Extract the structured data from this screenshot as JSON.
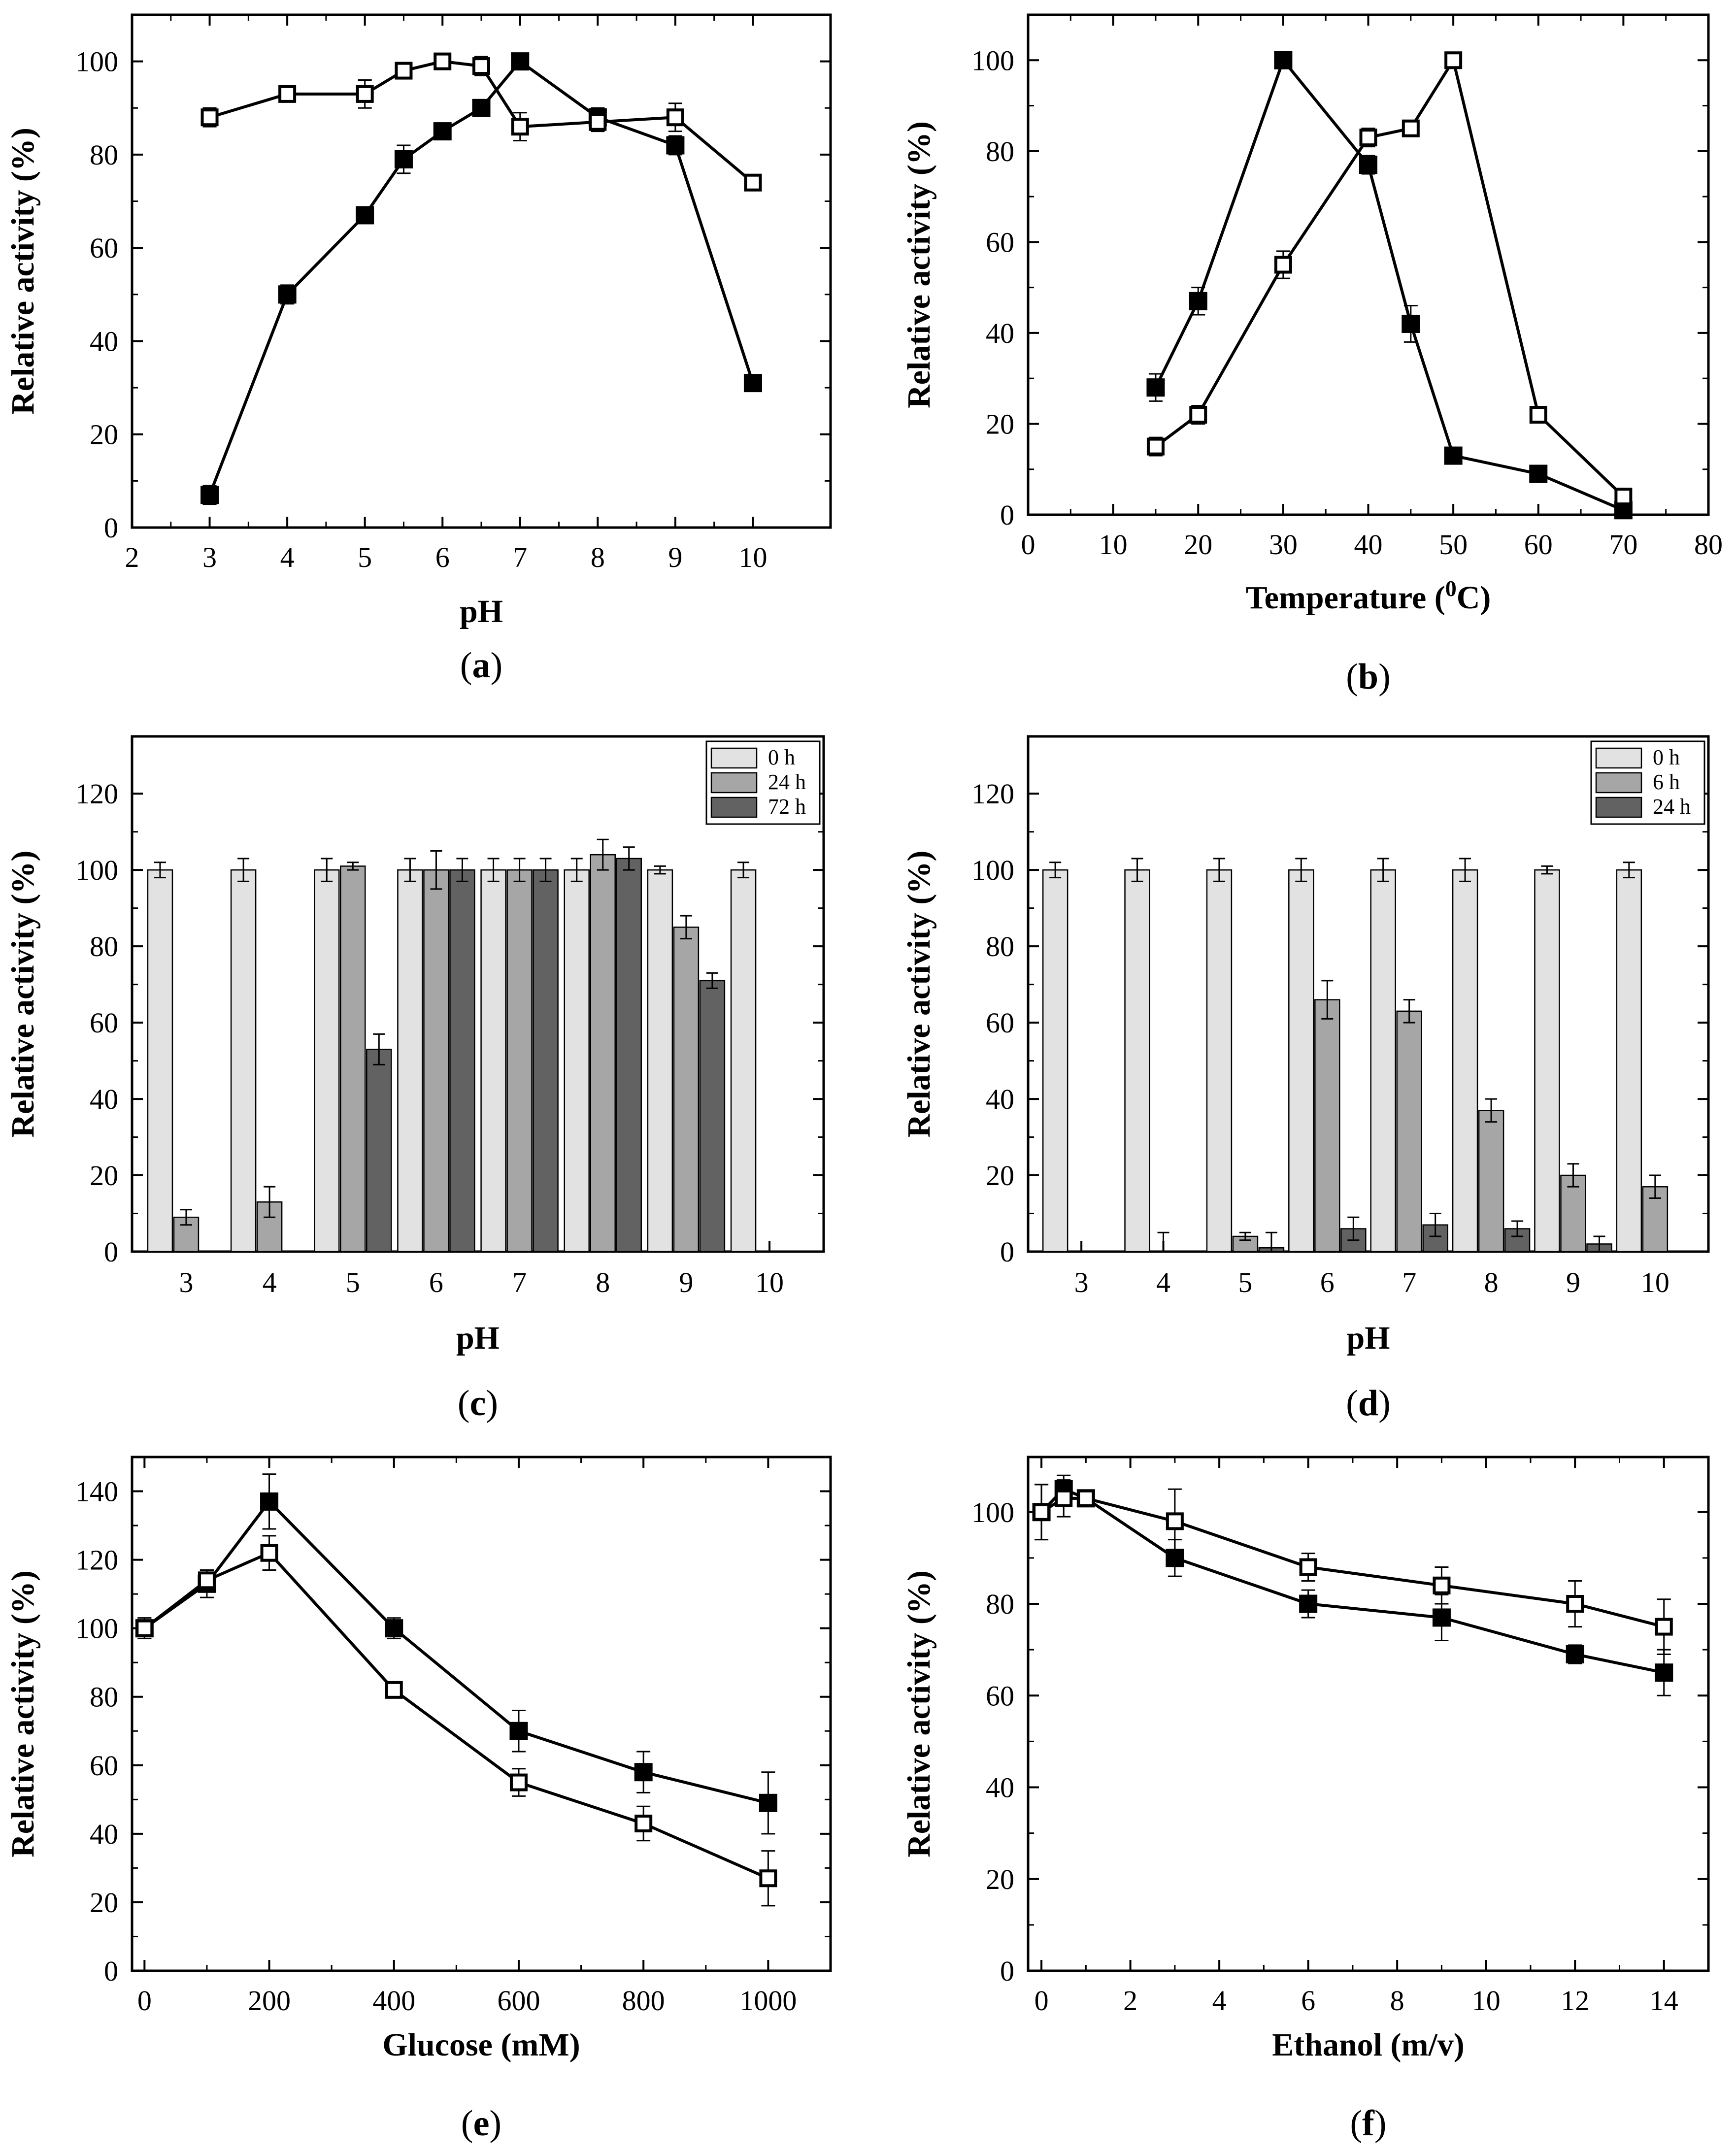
{
  "figure": {
    "panels": [
      "a",
      "b",
      "c",
      "d",
      "e",
      "f"
    ]
  },
  "chart_data": [
    {
      "id": "a",
      "type": "line",
      "caption_letter": "a",
      "xlabel": "pH",
      "ylabel": "Relative activity (%)",
      "xlim": [
        2,
        11
      ],
      "ylim": [
        0,
        110
      ],
      "xticks": [
        2,
        3,
        4,
        5,
        6,
        7,
        8,
        9,
        10
      ],
      "yticks": [
        0,
        20,
        40,
        60,
        80,
        100
      ],
      "series": [
        {
          "name": "filled squares",
          "marker": "filled",
          "x": [
            3,
            4,
            5,
            5.5,
            6,
            6.5,
            7,
            8,
            9,
            10
          ],
          "values": [
            7,
            50,
            67,
            79,
            85,
            90,
            100,
            88,
            82,
            31
          ],
          "errors": [
            2,
            2,
            1,
            3,
            1,
            1,
            1,
            2,
            2,
            1
          ]
        },
        {
          "name": "open squares",
          "marker": "open",
          "x": [
            3,
            4,
            5,
            5.5,
            6,
            6.5,
            7,
            8,
            9,
            10
          ],
          "values": [
            88,
            93,
            93,
            98,
            100,
            99,
            86,
            87,
            88,
            74
          ],
          "errors": [
            2,
            1,
            3,
            1,
            1,
            2,
            3,
            2,
            3,
            1
          ]
        }
      ]
    },
    {
      "id": "b",
      "type": "line",
      "caption_letter": "b",
      "xlabel": "Temperature (",
      "xlabel_sup": "0",
      "xlabel_tail": "C)",
      "ylabel": "Relative activity (%)",
      "xlim": [
        0,
        80
      ],
      "ylim": [
        0,
        110
      ],
      "xticks": [
        0,
        10,
        20,
        30,
        40,
        50,
        60,
        70,
        80
      ],
      "yticks": [
        0,
        20,
        40,
        60,
        80,
        100
      ],
      "series": [
        {
          "name": "filled squares",
          "marker": "filled",
          "x": [
            15,
            20,
            30,
            40,
            45,
            50,
            60,
            70
          ],
          "values": [
            28,
            47,
            100,
            77,
            42,
            13,
            9,
            1
          ],
          "errors": [
            3,
            3,
            1,
            2,
            4,
            1,
            1,
            1
          ]
        },
        {
          "name": "open squares",
          "marker": "open",
          "x": [
            15,
            20,
            30,
            40,
            45,
            50,
            60,
            70
          ],
          "values": [
            15,
            22,
            55,
            83,
            85,
            100,
            22,
            4
          ],
          "errors": [
            2,
            2,
            3,
            2,
            1,
            1,
            1,
            1
          ]
        }
      ]
    },
    {
      "id": "c",
      "type": "bar",
      "caption_letter": "c",
      "xlabel": "pH",
      "ylabel": "Relative activity (%)",
      "categories": [
        "3",
        "4",
        "5",
        "6",
        "7",
        "8",
        "9",
        "10"
      ],
      "ylim": [
        0,
        135
      ],
      "yticks": [
        0,
        20,
        40,
        60,
        80,
        100,
        120
      ],
      "legend_position": "top-right",
      "series": [
        {
          "name": "0 h",
          "color": "#e2e2e2",
          "values": [
            100,
            100,
            100,
            100,
            100,
            100,
            100,
            100
          ],
          "errors": [
            2,
            3,
            3,
            3,
            3,
            3,
            1,
            2
          ]
        },
        {
          "name": "24 h",
          "color": "#a6a6a6",
          "values": [
            9,
            13,
            101,
            100,
            100,
            104,
            85,
            0
          ],
          "errors": [
            2,
            4,
            1,
            5,
            3,
            4,
            3,
            0
          ]
        },
        {
          "name": "72 h",
          "color": "#626262",
          "values": [
            0,
            0,
            53,
            100,
            100,
            103,
            71,
            0
          ],
          "errors": [
            0,
            0,
            4,
            3,
            3,
            3,
            2,
            0
          ]
        }
      ]
    },
    {
      "id": "d",
      "type": "bar",
      "caption_letter": "d",
      "xlabel": "pH",
      "ylabel": "Relative activity (%)",
      "categories": [
        "3",
        "4",
        "5",
        "6",
        "7",
        "8",
        "9",
        "10"
      ],
      "ylim": [
        0,
        135
      ],
      "yticks": [
        0,
        20,
        40,
        60,
        80,
        100,
        120
      ],
      "legend_position": "top-right",
      "series": [
        {
          "name": "0 h",
          "color": "#e2e2e2",
          "values": [
            100,
            100,
            100,
            100,
            100,
            100,
            100,
            100
          ],
          "errors": [
            2,
            3,
            3,
            3,
            3,
            3,
            1,
            2
          ]
        },
        {
          "name": "6 h",
          "color": "#a6a6a6",
          "values": [
            0,
            0,
            4,
            66,
            63,
            37,
            20,
            17
          ],
          "errors": [
            0,
            5,
            1,
            5,
            3,
            3,
            3,
            3
          ]
        },
        {
          "name": "24 h",
          "color": "#626262",
          "values": [
            0,
            0,
            1,
            6,
            7,
            6,
            2,
            0
          ],
          "errors": [
            0,
            0,
            4,
            3,
            3,
            2,
            2,
            0
          ]
        }
      ]
    },
    {
      "id": "e",
      "type": "line",
      "caption_letter": "e",
      "xlabel": "Glucose (mM)",
      "ylabel": "Relative activity (%)",
      "xlim": [
        -20,
        1100
      ],
      "ylim": [
        0,
        150
      ],
      "xticks": [
        0,
        200,
        400,
        600,
        800,
        1000
      ],
      "yticks": [
        0,
        20,
        40,
        60,
        80,
        100,
        120,
        140
      ],
      "series": [
        {
          "name": "filled squares",
          "marker": "filled",
          "x": [
            0,
            100,
            200,
            400,
            600,
            800,
            1000
          ],
          "values": [
            100,
            113,
            137,
            100,
            70,
            58,
            49
          ],
          "errors": [
            3,
            4,
            8,
            3,
            6,
            6,
            9
          ]
        },
        {
          "name": "open squares",
          "marker": "open",
          "x": [
            0,
            100,
            200,
            400,
            600,
            800,
            1000
          ],
          "values": [
            100,
            114,
            122,
            82,
            55,
            43,
            27
          ],
          "errors": [
            3,
            3,
            5,
            2,
            4,
            5,
            8
          ]
        }
      ]
    },
    {
      "id": "f",
      "type": "line",
      "caption_letter": "f",
      "xlabel": "Ethanol (m/v)",
      "ylabel": "Relative activity (%)",
      "xlim": [
        -0.3,
        15
      ],
      "ylim": [
        0,
        112
      ],
      "xticks": [
        0,
        2,
        4,
        6,
        8,
        10,
        12,
        14
      ],
      "yticks": [
        0,
        20,
        40,
        60,
        80,
        100
      ],
      "series": [
        {
          "name": "filled squares",
          "marker": "filled",
          "x": [
            0,
            0.5,
            1,
            3,
            6,
            9,
            12,
            14
          ],
          "values": [
            100,
            105,
            103,
            90,
            80,
            77,
            69,
            65
          ],
          "errors": [
            6,
            3,
            1,
            4,
            3,
            5,
            2,
            5
          ]
        },
        {
          "name": "open squares",
          "marker": "open",
          "x": [
            0,
            0.5,
            1,
            3,
            6,
            9,
            12,
            14
          ],
          "values": [
            100,
            103,
            103,
            98,
            88,
            84,
            80,
            75
          ],
          "errors": [
            6,
            4,
            1,
            7,
            3,
            4,
            5,
            6
          ]
        }
      ]
    }
  ]
}
